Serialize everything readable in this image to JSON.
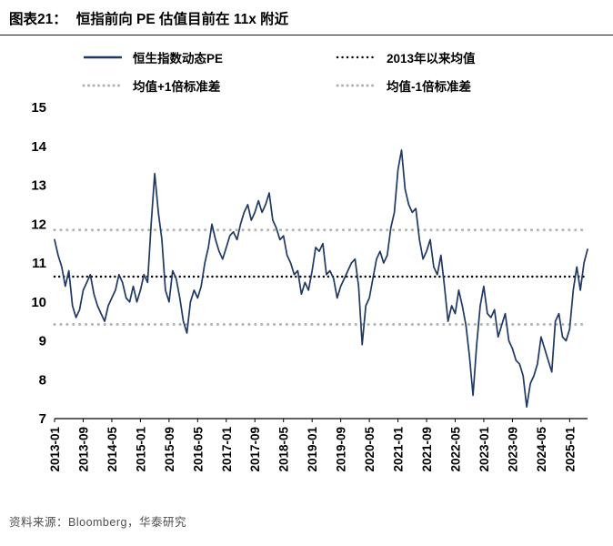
{
  "header": {
    "figure_label": "图表21：",
    "title": "恒指前向 PE 估值目前在 11x 附近"
  },
  "footer": {
    "source": "资料来源：Bloomberg，华泰研究"
  },
  "chart_data": {
    "type": "line",
    "title": "恒指前向 PE 估值目前在 11x 附近",
    "xlabel": "",
    "ylabel": "",
    "ylim": [
      7,
      15
    ],
    "yticks": [
      7,
      8,
      9,
      10,
      11,
      12,
      13,
      14,
      15
    ],
    "grid": false,
    "legend_position": "top",
    "xtick_interval": 8,
    "xtick_labels": [
      "2013-01",
      "2013-09",
      "2014-05",
      "2015-01",
      "2015-09",
      "2016-05",
      "2017-01",
      "2017-09",
      "2018-05",
      "2019-01",
      "2019-09",
      "2020-05",
      "2021-01",
      "2021-09",
      "2022-05",
      "2023-01",
      "2023-09",
      "2024-05",
      "2025-01"
    ],
    "mean": 10.65,
    "band": {
      "upper": 11.85,
      "lower": 9.42
    },
    "colors": {
      "line": "#1f3864",
      "mean": "#000000",
      "band": "#b3b3b3",
      "axis": "#000000"
    },
    "legend": [
      {
        "label": "恒生指数动态PE",
        "style": "solid",
        "color": "#1f3864",
        "icon": "solid-line-swatch"
      },
      {
        "label": "2013年以来均值",
        "style": "dotted",
        "color": "#000000",
        "icon": "black-dotted-line-swatch"
      },
      {
        "label": "均值+1倍标准差",
        "style": "dotted",
        "color": "#b3b3b3",
        "icon": "gray-dotted-line-swatch"
      },
      {
        "label": "均值-1倍标准差",
        "style": "dotted",
        "color": "#b3b3b3",
        "icon": "gray-dotted-line-swatch"
      }
    ],
    "x_start": "2013-01",
    "x_frequency": "monthly",
    "series": [
      {
        "name": "恒生指数动态PE",
        "values": [
          11.6,
          11.2,
          10.9,
          10.4,
          10.8,
          9.9,
          9.6,
          9.8,
          10.3,
          10.5,
          10.7,
          10.2,
          9.9,
          9.7,
          9.5,
          9.9,
          10.1,
          10.3,
          10.7,
          10.5,
          10.1,
          10.0,
          10.4,
          10.0,
          10.3,
          10.7,
          10.5,
          12.0,
          13.3,
          12.3,
          11.6,
          10.3,
          10.0,
          10.8,
          10.6,
          10.1,
          9.5,
          9.2,
          10.0,
          10.3,
          10.1,
          10.4,
          11.0,
          11.4,
          12.0,
          11.6,
          11.3,
          11.1,
          11.4,
          11.7,
          11.8,
          11.6,
          12.0,
          12.3,
          12.5,
          12.1,
          12.3,
          12.6,
          12.3,
          12.5,
          12.8,
          12.1,
          11.9,
          11.6,
          11.7,
          11.2,
          11.0,
          10.7,
          10.8,
          10.2,
          10.5,
          10.3,
          10.8,
          11.4,
          11.3,
          11.5,
          10.7,
          10.8,
          10.6,
          10.1,
          10.4,
          10.6,
          10.8,
          11.0,
          11.1,
          10.4,
          8.9,
          9.9,
          10.1,
          10.6,
          11.1,
          11.3,
          11.0,
          11.2,
          11.9,
          12.3,
          13.4,
          13.9,
          12.9,
          12.5,
          12.3,
          12.4,
          11.6,
          11.1,
          11.3,
          11.6,
          10.9,
          10.7,
          11.2,
          10.4,
          9.5,
          9.9,
          9.7,
          10.3,
          9.9,
          9.4,
          8.6,
          7.6,
          8.9,
          9.9,
          10.4,
          9.7,
          9.6,
          9.8,
          9.1,
          9.4,
          9.7,
          9.0,
          8.8,
          8.5,
          8.4,
          8.1,
          7.3,
          7.9,
          8.1,
          8.4,
          9.1,
          8.8,
          8.5,
          8.2,
          9.5,
          9.7,
          9.1,
          9.0,
          9.3,
          10.3,
          10.9,
          10.3,
          11.0,
          11.35
        ]
      }
    ]
  }
}
